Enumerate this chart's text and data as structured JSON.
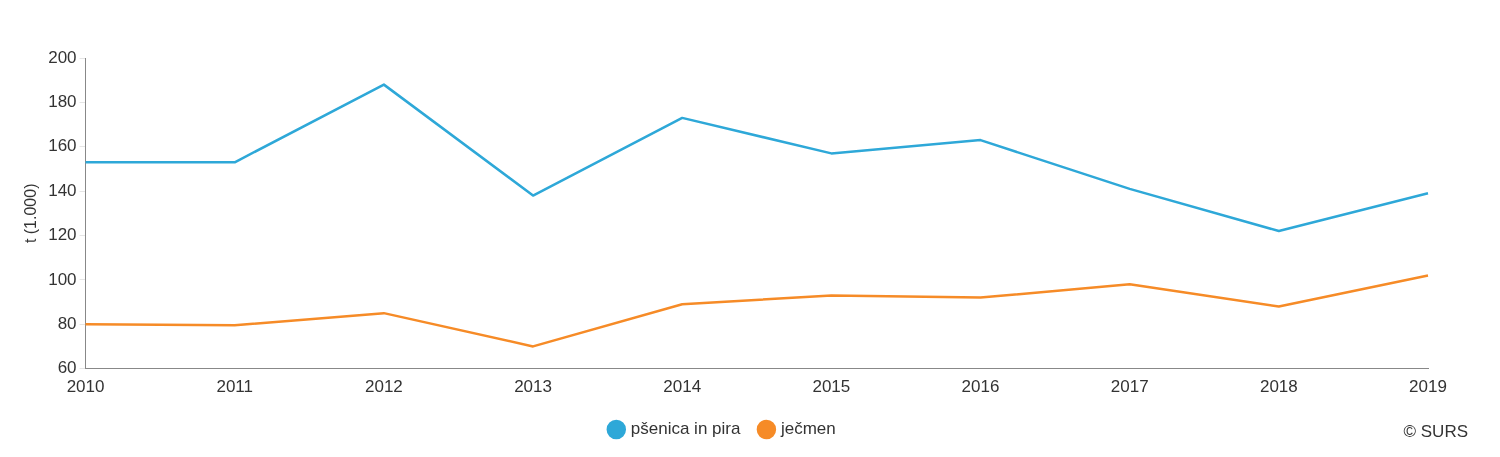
{
  "chart_data": {
    "type": "line",
    "ylabel": "t (1.000)",
    "categories": [
      "2010",
      "2011",
      "2012",
      "2013",
      "2014",
      "2015",
      "2016",
      "2017",
      "2018",
      "2019"
    ],
    "series": [
      {
        "name": "pšenica in pira",
        "color": "#2ea8d8",
        "values": [
          153,
          153,
          188,
          138,
          173,
          157,
          163,
          141,
          122,
          139
        ]
      },
      {
        "name": "ječmen",
        "color": "#f68b27",
        "values": [
          80,
          79.5,
          85,
          70,
          89,
          93,
          92,
          98,
          88,
          102
        ]
      }
    ],
    "ylim": [
      60,
      200
    ],
    "yticks": [
      60,
      80,
      100,
      120,
      140,
      160,
      180,
      200
    ],
    "grid": false,
    "legend": "bottom",
    "marker": "none",
    "line_style": "solid",
    "annotations": [
      "© SURS"
    ]
  }
}
